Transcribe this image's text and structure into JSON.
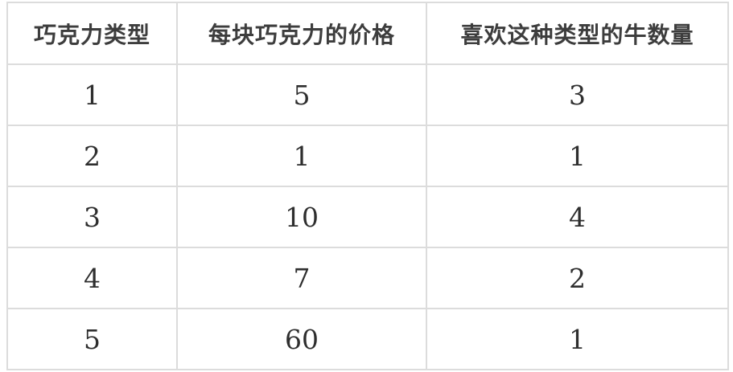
{
  "table": {
    "headers": [
      "巧克力类型",
      "每块巧克力的价格",
      "喜欢这种类型的牛数量"
    ],
    "rows": [
      [
        "1",
        "5",
        "3"
      ],
      [
        "2",
        "1",
        "1"
      ],
      [
        "3",
        "10",
        "4"
      ],
      [
        "4",
        "7",
        "2"
      ],
      [
        "5",
        "60",
        "1"
      ]
    ]
  },
  "colors": {
    "border": "#dcdcdc",
    "header_text": "#3d3d3d",
    "body_text": "#2e2e2e",
    "background": "#ffffff"
  },
  "chart_data": {
    "type": "table",
    "title": "",
    "columns": [
      "巧克力类型",
      "每块巧克力的价格",
      "喜欢这种类型的牛数量"
    ],
    "rows": [
      [
        1,
        5,
        3
      ],
      [
        2,
        1,
        1
      ],
      [
        3,
        10,
        4
      ],
      [
        4,
        7,
        2
      ],
      [
        5,
        60,
        1
      ]
    ]
  }
}
